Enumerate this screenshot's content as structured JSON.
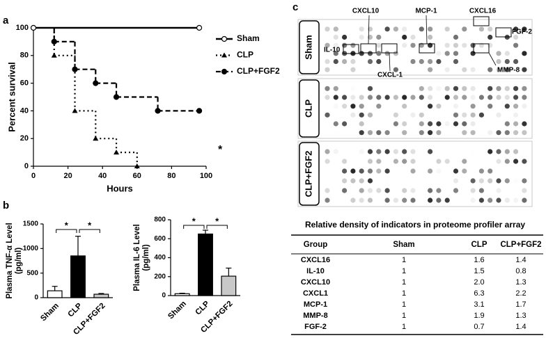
{
  "chart_data": [
    {
      "type": "step",
      "panel": "a",
      "ylabel": "Percent survival",
      "xlabel": "Hours",
      "xlim": [
        0,
        100
      ],
      "xticks": [
        0,
        20,
        40,
        60,
        80,
        100
      ],
      "ylim": [
        0,
        100
      ],
      "yticks": [
        0,
        20,
        40,
        60,
        80,
        100
      ],
      "series": [
        {
          "name": "Sham",
          "color": "#000000",
          "style": "solid",
          "marker": "circle-open",
          "x": [
            0,
            96
          ],
          "values": [
            100,
            100
          ]
        },
        {
          "name": "CLP",
          "color": "#000000",
          "style": "dotted",
          "marker": "triangle",
          "x": [
            12,
            24,
            36,
            48,
            60
          ],
          "values": [
            80,
            40,
            20,
            10,
            0
          ]
        },
        {
          "name": "CLP+FGF2",
          "color": "#000000",
          "style": "dashed",
          "marker": "circle",
          "x": [
            12,
            24,
            36,
            48,
            72,
            96
          ],
          "values": [
            90,
            70,
            60,
            50,
            40,
            40
          ]
        }
      ],
      "annotation": "*"
    },
    {
      "type": "bar",
      "panel": "b",
      "ylabel": [
        "Plasma TNF-α Level",
        "(pg/ml)"
      ],
      "categories": [
        "Sham",
        "CLP",
        "CLP+FGF2"
      ],
      "values": [
        140,
        850,
        70
      ],
      "errors": [
        90,
        400,
        15
      ],
      "colors": [
        "#ffffff",
        "#000000",
        "#c8c8c8"
      ],
      "ylim": [
        0,
        1500
      ],
      "yticks": [
        0,
        500,
        1000,
        1500
      ],
      "annotations": [
        "*",
        "*"
      ]
    },
    {
      "type": "bar",
      "ylabel": [
        "Plasma IL-6 Level",
        "(pg/ml)"
      ],
      "categories": [
        "Sham",
        "CLP",
        "CLP+FGF2"
      ],
      "values": [
        20,
        650,
        205
      ],
      "errors": [
        5,
        40,
        85
      ],
      "colors": [
        "#ffffff",
        "#000000",
        "#c8c8c8"
      ],
      "ylim": [
        0,
        800
      ],
      "yticks": [
        0,
        200,
        400,
        600,
        800
      ],
      "annotations": [
        "*",
        "*"
      ]
    }
  ],
  "blot": {
    "panel": "c",
    "rows": [
      "Sham",
      "CLP",
      "CLP+FGF2"
    ],
    "labels": [
      "CXCL10",
      "MCP-1",
      "CXCL16",
      "FGF-2",
      "IL-10",
      "CXCL-1",
      "MMP-8"
    ]
  },
  "table": {
    "title": "Relative density of indicators in proteome profiler array",
    "header": [
      "Group",
      "Sham",
      "CLP",
      "CLP+FGF2"
    ],
    "rows": [
      [
        "CXCL16",
        "1",
        "1.6",
        "1.4"
      ],
      [
        "IL-10",
        "1",
        "1.5",
        "0.8"
      ],
      [
        "CXCL10",
        "1",
        "2.0",
        "1.3"
      ],
      [
        "CXCL1",
        "1",
        "6.3",
        "2.2"
      ],
      [
        "MCP-1",
        "1",
        "3.1",
        "1.7"
      ],
      [
        "MMP-8",
        "1",
        "1.9",
        "1.3"
      ],
      [
        "FGF-2",
        "1",
        "0.7",
        "1.4"
      ]
    ]
  }
}
